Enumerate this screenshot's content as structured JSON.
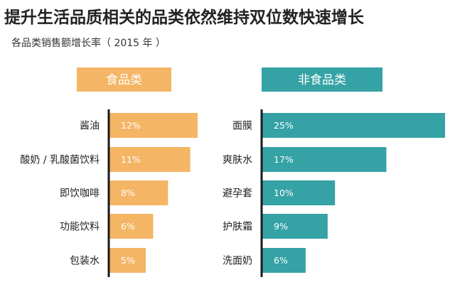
{
  "title": "提升生活品质相关的品类依然维持双位数快速增长",
  "subtitle": "各品类销售额增长率（ 2015 年 ）",
  "colors": {
    "food": "#F4B565",
    "nonfood": "#35A2A5",
    "axis": "#1a1a1a"
  },
  "chart_data": [
    {
      "type": "bar",
      "orientation": "horizontal",
      "title": "食品类",
      "categories": [
        "酱油",
        "酸奶 / 乳酸菌饮料",
        "即饮咖啡",
        "功能饮料",
        "包装水"
      ],
      "values": [
        12,
        11,
        8,
        6,
        5
      ],
      "labels": [
        "12%",
        "11%",
        "8%",
        "6%",
        "5%"
      ],
      "unit": "%",
      "xlim": [
        0,
        25
      ]
    },
    {
      "type": "bar",
      "orientation": "horizontal",
      "title": "非食品类",
      "categories": [
        "面膜",
        "爽肤水",
        "避孕套",
        "护肤霜",
        "洗面奶"
      ],
      "values": [
        25,
        17,
        10,
        9,
        6
      ],
      "labels": [
        "25%",
        "17%",
        "10%",
        "9%",
        "6%"
      ],
      "unit": "%",
      "xlim": [
        0,
        25
      ]
    }
  ]
}
